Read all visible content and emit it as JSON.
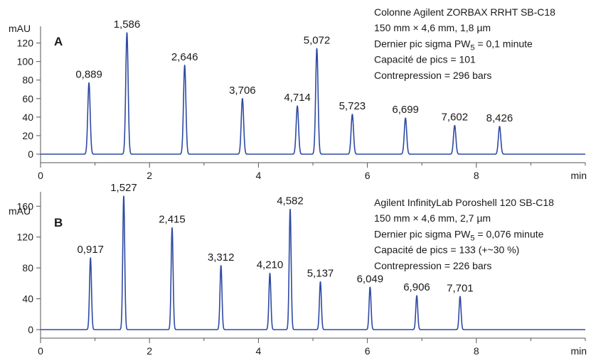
{
  "chart_data": [
    {
      "type": "line",
      "panel_label": "A",
      "y_unit": "mAU",
      "x_unit": "min",
      "x_ticks": [
        "0",
        "2",
        "4",
        "6",
        "8"
      ],
      "y_ticks": [
        "0",
        "20",
        "40",
        "60",
        "80",
        "100",
        "120"
      ],
      "xlim": [
        0,
        10
      ],
      "ylim": [
        -7,
        135
      ],
      "grid": false,
      "legend": "none",
      "line_color": "#2e4aa3",
      "peak_width_min": 0.022,
      "peaks": [
        {
          "rt": 0.889,
          "label": "0,889",
          "height": 77
        },
        {
          "rt": 1.586,
          "label": "1,586",
          "height": 131
        },
        {
          "rt": 2.646,
          "label": "2,646",
          "height": 96
        },
        {
          "rt": 3.706,
          "label": "3,706",
          "height": 60
        },
        {
          "rt": 4.714,
          "label": "4,714",
          "height": 52
        },
        {
          "rt": 5.072,
          "label": "5,072",
          "height": 114
        },
        {
          "rt": 5.723,
          "label": "5,723",
          "height": 43
        },
        {
          "rt": 6.699,
          "label": "6,699",
          "height": 39
        },
        {
          "rt": 7.602,
          "label": "7,602",
          "height": 31
        },
        {
          "rt": 8.426,
          "label": "8,426",
          "height": 30
        }
      ],
      "info": [
        {
          "text": "Colonne Agilent ZORBAX RRHT SB-C18"
        },
        {
          "text": "150 mm × 4,6 mm, 1,8 µm"
        },
        {
          "text": "Dernier pic sigma PW",
          "sub": "5",
          "after": " = 0,1 minute"
        },
        {
          "text": "Capacité de pics = 101"
        },
        {
          "text": "Contrepression = 296 bars"
        }
      ]
    },
    {
      "type": "line",
      "panel_label": "B",
      "y_unit": "mAU",
      "x_unit": "min",
      "x_ticks": [
        "0",
        "2",
        "4",
        "6",
        "8"
      ],
      "y_ticks": [
        "0",
        "40",
        "80",
        "120",
        "160"
      ],
      "xlim": [
        0,
        10
      ],
      "ylim": [
        -12,
        175
      ],
      "grid": false,
      "legend": "none",
      "line_color": "#2e4aa3",
      "peak_width_min": 0.018,
      "peaks": [
        {
          "rt": 0.917,
          "label": "0,917",
          "height": 93
        },
        {
          "rt": 1.527,
          "label": "1,527",
          "height": 173
        },
        {
          "rt": 2.415,
          "label": "2,415",
          "height": 132
        },
        {
          "rt": 3.312,
          "label": "3,312",
          "height": 83
        },
        {
          "rt": 4.21,
          "label": "4,210",
          "height": 73
        },
        {
          "rt": 4.582,
          "label": "4,582",
          "height": 156
        },
        {
          "rt": 5.137,
          "label": "5,137",
          "height": 62
        },
        {
          "rt": 6.049,
          "label": "6,049",
          "height": 55
        },
        {
          "rt": 6.906,
          "label": "6,906",
          "height": 44
        },
        {
          "rt": 7.701,
          "label": "7,701",
          "height": 43
        }
      ],
      "info": [
        {
          "text": "Agilent InfinityLab Poroshell 120 SB-C18"
        },
        {
          "text": "150 mm × 4,6 mm, 2,7 µm"
        },
        {
          "text": "Dernier pic sigma PW",
          "sub": "5",
          "after": " = 0,076 minute"
        },
        {
          "text": "Capacité de pics = 133 (+~30 %)"
        },
        {
          "text": "Contrepression = 226 bars"
        }
      ]
    }
  ]
}
